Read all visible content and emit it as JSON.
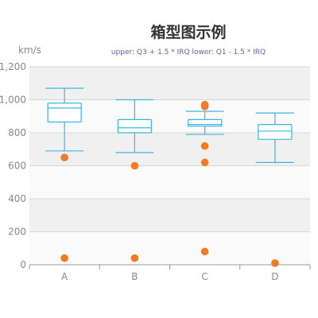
{
  "chart_data": {
    "type": "boxplot",
    "title": "箱型图示例",
    "subtitle": "upper: Q3 + 1.5 * IRQ  lower: Q1 - 1.5 * IRQ",
    "ylabel": "km/s",
    "ylim": [
      0,
      1200
    ],
    "yticks": [
      0,
      200,
      400,
      600,
      800,
      1000,
      1200
    ],
    "ytick_labels": [
      "0",
      "200",
      "400",
      "600",
      "800",
      "1,000",
      "1,200"
    ],
    "categories": [
      "A",
      "B",
      "C",
      "D"
    ],
    "grid": true,
    "band_colors": [
      "#f0f0f0",
      "#fafafa"
    ],
    "series_color": "#3bb6e6",
    "outlier_color": "#f47a20",
    "boxes": [
      {
        "category": "A",
        "low": 690,
        "q1": 865,
        "median": 950,
        "q3": 980,
        "high": 1070
      },
      {
        "category": "B",
        "low": 680,
        "q1": 800,
        "median": 830,
        "q3": 880,
        "high": 1000
      },
      {
        "category": "C",
        "low": 790,
        "q1": 840,
        "median": 850,
        "q3": 880,
        "high": 930
      },
      {
        "category": "D",
        "low": 620,
        "q1": 760,
        "median": 810,
        "q3": 850,
        "high": 920
      }
    ],
    "outliers": [
      {
        "category": "A",
        "value": 650
      },
      {
        "category": "A",
        "value": 40
      },
      {
        "category": "B",
        "value": 600
      },
      {
        "category": "B",
        "value": 40
      },
      {
        "category": "C",
        "value": 970
      },
      {
        "category": "C",
        "value": 960
      },
      {
        "category": "C",
        "value": 720
      },
      {
        "category": "C",
        "value": 620
      },
      {
        "category": "C",
        "value": 80
      },
      {
        "category": "D",
        "value": 10
      }
    ]
  }
}
